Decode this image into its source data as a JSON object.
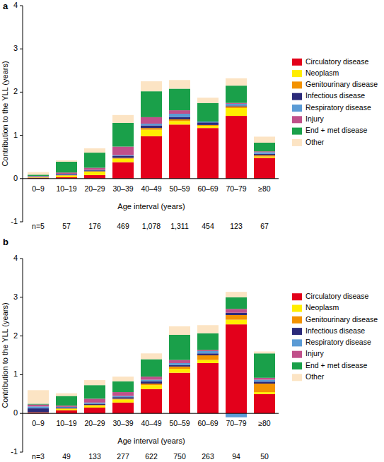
{
  "chart_data": [
    {
      "type": "bar",
      "stacked": true,
      "title": "a",
      "x_label": "Age interval (years)",
      "y_label": "Contribution to the YLL (years)",
      "categories": [
        "0–9",
        "10–19",
        "20–29",
        "30–39",
        "40–49",
        "50–59",
        "60–69",
        "70–79",
        "≥80"
      ],
      "sample_sizes": [
        {
          "value": 5,
          "label": "n=5"
        },
        57,
        176,
        469,
        {
          "value": 1078,
          "label": "1,078"
        },
        {
          "value": 1311,
          "label": "1,311"
        },
        454,
        123,
        67
      ],
      "ylim": [
        -1,
        4
      ],
      "yticks": [
        -1,
        0,
        1,
        2,
        3,
        4
      ],
      "grid": false,
      "legend": "right",
      "series": [
        {
          "name": "Circulatory disease",
          "color": "#e3001b",
          "values": [
            0.02,
            0.03,
            0.08,
            0.38,
            0.98,
            1.25,
            1.17,
            1.45,
            0.48
          ]
        },
        {
          "name": "Neoplasm",
          "color": "#ffed00",
          "values": [
            0.01,
            0.04,
            0.08,
            0.08,
            0.15,
            0.08,
            0.05,
            0.18,
            0.03
          ]
        },
        {
          "name": "Genitourinary disease",
          "color": "#f39200",
          "values": [
            0,
            0.01,
            0.01,
            0.02,
            0.04,
            0.04,
            0.02,
            0.04,
            0.03
          ]
        },
        {
          "name": "Infectious disease",
          "color": "#2b2a7a",
          "values": [
            0.01,
            0.02,
            0.02,
            0.04,
            0.06,
            0.05,
            0.06,
            0.02,
            0.03
          ]
        },
        {
          "name": "Respiratory disease",
          "color": "#5b9bd5",
          "values": [
            0.01,
            0.01,
            0.01,
            0.02,
            0.04,
            0.08,
            0.02,
            0.04,
            0.04
          ]
        },
        {
          "name": "Injury",
          "color": "#c0508a",
          "values": [
            0.01,
            0.03,
            0.05,
            0.2,
            0.15,
            0.08,
            0,
            0.02,
            0.02
          ]
        },
        {
          "name": "End + met disease",
          "color": "#1aa04a",
          "values": [
            0.03,
            0.25,
            0.35,
            0.55,
            0.6,
            0.5,
            0.43,
            0.4,
            0.2
          ]
        },
        {
          "name": "Other",
          "color": "#fce4c4",
          "values": [
            0.06,
            0.03,
            0.1,
            0.18,
            0.23,
            0.2,
            0.12,
            0.17,
            0.14
          ]
        }
      ]
    },
    {
      "type": "bar",
      "stacked": true,
      "title": "b",
      "x_label": "Age interval (years)",
      "y_label": "Contribution to the YLL (years)",
      "categories": [
        "0–9",
        "10–19",
        "20–29",
        "30–39",
        "40–49",
        "50–59",
        "60–69",
        "70–79",
        "≥80"
      ],
      "sample_sizes": [
        {
          "value": 3,
          "label": "n=3"
        },
        49,
        133,
        277,
        622,
        750,
        263,
        94,
        50
      ],
      "ylim": [
        -1,
        4
      ],
      "yticks": [
        -1,
        0,
        1,
        2,
        3,
        4
      ],
      "grid": false,
      "legend": "right",
      "series": [
        {
          "name": "Circulatory disease",
          "color": "#e3001b",
          "values": [
            0.02,
            0.08,
            0.15,
            0.28,
            0.63,
            1.05,
            1.3,
            2.3,
            0.5
          ]
        },
        {
          "name": "Neoplasm",
          "color": "#ffed00",
          "values": [
            0,
            0.04,
            0.05,
            0.08,
            0.1,
            0.1,
            0.08,
            0.12,
            0.05
          ]
        },
        {
          "name": "Genitourinary disease",
          "color": "#f39200",
          "values": [
            0.01,
            0.01,
            0.02,
            0.02,
            0.04,
            0.06,
            0.12,
            0.12,
            0.22
          ]
        },
        {
          "name": "Infectious disease",
          "color": "#2b2a7a",
          "values": [
            0.1,
            0.02,
            0.03,
            0.04,
            0.06,
            0.04,
            0.05,
            0.06,
            0.05
          ]
        },
        {
          "name": "Respiratory disease",
          "color": "#5b9bd5",
          "values": [
            0.05,
            0.02,
            0.03,
            0.03,
            0.04,
            0.05,
            0.06,
            -0.1,
            0.05
          ]
        },
        {
          "name": "Injury",
          "color": "#c0508a",
          "values": [
            0.05,
            0.03,
            0.1,
            0.1,
            0.08,
            0.08,
            0.03,
            0.1,
            0.05
          ]
        },
        {
          "name": "End + met disease",
          "color": "#1aa04a",
          "values": [
            0.02,
            0.25,
            0.35,
            0.28,
            0.45,
            0.65,
            0.43,
            0.3,
            0.63
          ]
        },
        {
          "name": "Other",
          "color": "#fce4c4",
          "values": [
            0.35,
            0.07,
            0.13,
            0.12,
            0.15,
            0.22,
            0.21,
            0.14,
            0.05
          ]
        }
      ]
    }
  ]
}
